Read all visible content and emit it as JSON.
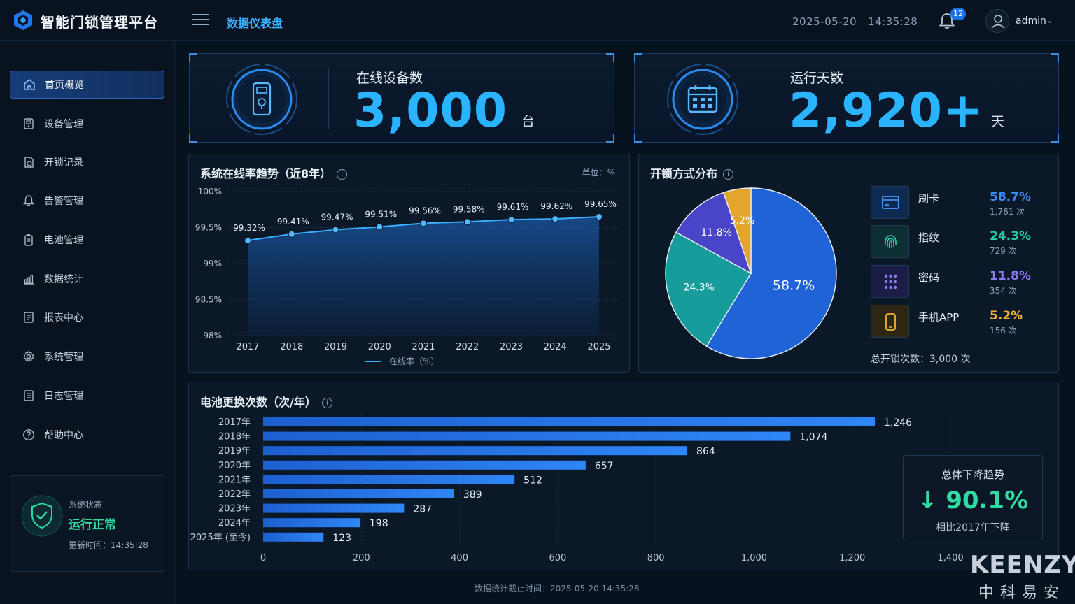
{
  "app": {
    "title": "智能门锁管理平台",
    "tab": "数据仪表盘",
    "datetime": "2025-05-20   14:35:28",
    "notifications": "12",
    "username": "admin"
  },
  "sidebar": {
    "items": [
      {
        "label": "首页概览",
        "icon": "home-icon",
        "active": true
      },
      {
        "label": "设备管理",
        "icon": "device-icon"
      },
      {
        "label": "开锁记录",
        "icon": "lock-record-icon"
      },
      {
        "label": "告警管理",
        "icon": "alarm-bell-icon"
      },
      {
        "label": "电池管理",
        "icon": "battery-icon"
      },
      {
        "label": "数据统计",
        "icon": "bar-chart-icon"
      },
      {
        "label": "报表中心",
        "icon": "report-icon"
      },
      {
        "label": "系统管理",
        "icon": "gear-icon"
      },
      {
        "label": "日志管理",
        "icon": "log-icon"
      },
      {
        "label": "帮助中心",
        "icon": "help-icon"
      }
    ],
    "status": {
      "label": "系统状态",
      "value": "运行正常",
      "updated": "更新时间：14:35:28"
    }
  },
  "stats": {
    "online": {
      "title": "在线设备数",
      "value": "3,000",
      "unit": "台"
    },
    "days": {
      "title": "运行天数",
      "value": "2,920+",
      "unit": "天"
    }
  },
  "line_chart": {
    "title": "系统在线率趋势（近8年）",
    "unit_label": "单位：%",
    "legend": "在线率（%）",
    "y_ticks": [
      "100%",
      "99.5%",
      "99%",
      "98.5%",
      "98%"
    ],
    "point_labels": [
      "99.32%",
      "99.41%",
      "99.47%",
      "99.51%",
      "99.56%",
      "99.58%",
      "99.61%",
      "99.62%",
      "99.65%"
    ]
  },
  "pie_chart": {
    "title": "开锁方式分布",
    "total": "总开锁次数：3,000 次",
    "slice_labels": [
      "58.7%",
      "24.3%",
      "11.8%",
      "5.2%"
    ],
    "methods": [
      {
        "name": "刷卡",
        "pct": "58.7%",
        "count": "1,761 次",
        "color": "#2f7cf0",
        "icon": "card-icon"
      },
      {
        "name": "指纹",
        "pct": "24.3%",
        "count": "729 次",
        "color": "#1fc4a6",
        "icon": "fingerprint-icon"
      },
      {
        "name": "密码",
        "pct": "11.8%",
        "count": "354 次",
        "color": "#8b7bf0",
        "icon": "keypad-icon"
      },
      {
        "name": "手机APP",
        "pct": "5.2%",
        "count": "156 次",
        "color": "#f0b232",
        "icon": "phone-icon"
      }
    ]
  },
  "bar_chart": {
    "title": "电池更换次数（次/年）",
    "x_ticks": [
      "0",
      "200",
      "400",
      "600",
      "800",
      "1,000",
      "1,200",
      "1,400"
    ],
    "value_labels": [
      "1,246",
      "1,074",
      "864",
      "657",
      "512",
      "389",
      "287",
      "198",
      "123"
    ],
    "trend": {
      "title": "总体下降趋势",
      "value": "90.1%",
      "arrow": "↓",
      "note": "相比2017年下降"
    }
  },
  "footer": {
    "note": "数据统计截止时间：2025-05-20 14:35:28"
  },
  "brand": {
    "en": "KEENZY",
    "cn": "中科易安"
  },
  "chart_data": [
    {
      "type": "area",
      "title": "系统在线率趋势（近8年）",
      "x": [
        "2017",
        "2018",
        "2019",
        "2020",
        "2021",
        "2022",
        "2023",
        "2024",
        "2025"
      ],
      "series": [
        {
          "name": "在线率（%）",
          "values": [
            99.32,
            99.41,
            99.47,
            99.51,
            99.56,
            99.58,
            99.61,
            99.62,
            99.65
          ]
        }
      ],
      "ylim": [
        98,
        100
      ],
      "grid": true,
      "legend": "bottom"
    },
    {
      "type": "pie",
      "title": "开锁方式分布",
      "categories": [
        "刷卡",
        "指纹",
        "密码",
        "手机APP"
      ],
      "values": [
        58.7,
        24.3,
        11.8,
        5.2
      ],
      "colors": [
        "#1f63d6",
        "#169c9a",
        "#4a45c8",
        "#e3a52c"
      ]
    },
    {
      "type": "bar",
      "orientation": "horizontal",
      "title": "电池更换次数（次/年）",
      "categories": [
        "2017年",
        "2018年",
        "2019年",
        "2020年",
        "2021年",
        "2022年",
        "2023年",
        "2024年",
        "2025年 (至今)"
      ],
      "values": [
        1246,
        1074,
        864,
        657,
        512,
        389,
        287,
        198,
        123
      ],
      "xlim": [
        0,
        1400
      ],
      "grid": true
    }
  ]
}
